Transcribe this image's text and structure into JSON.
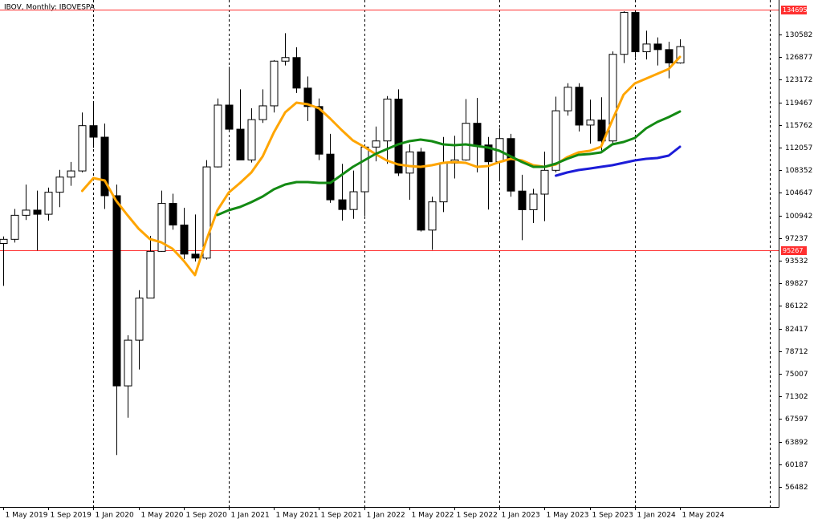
{
  "chart_data": {
    "type": "candlestick",
    "title": "IBOV, Monthly:  IBOVESPA",
    "categories": [
      "1 May 2019",
      null,
      null,
      null,
      "1 Sep 2019",
      null,
      null,
      null,
      "1 Jan 2020",
      null,
      null,
      null,
      "1 May 2020",
      null,
      null,
      null,
      "1 Sep 2020",
      null,
      null,
      null,
      "1 Jan 2021",
      null,
      null,
      null,
      "1 May 2021",
      null,
      null,
      null,
      "1 Sep 2021",
      null,
      null,
      null,
      "1 Jan 2022",
      null,
      null,
      null,
      "1 May 2022",
      null,
      null,
      null,
      "1 Sep 2022",
      null,
      null,
      null,
      "1 Jan 2023",
      null,
      null,
      null,
      "1 May 2023",
      null,
      null,
      null,
      "1 Sep 2023",
      null,
      null,
      null,
      "1 Jan 2024",
      null,
      null,
      null,
      "1 May 2024"
    ],
    "open": [
      96353,
      97030,
      100967,
      101812,
      101135,
      104745,
      107220,
      108233,
      115645,
      113761,
      104172,
      73020,
      80506,
      87403,
      95056,
      102912,
      99369,
      94603,
      93952,
      108893,
      119017,
      115068,
      110035,
      116634,
      118894,
      126216,
      126802,
      121801,
      118781,
      110979,
      103501,
      101915,
      104822,
      112144,
      113142,
      119999,
      107876,
      111351,
      98542,
      103165,
      109523,
      110037,
      116037,
      112486,
      109735,
      113532,
      104932,
      101882,
      104432,
      108335,
      118087,
      121943,
      115742,
      116565,
      113144,
      127331,
      134185,
      127752,
      129020,
      128106,
      125924
    ],
    "high": [
      97500,
      102000,
      106000,
      105000,
      105500,
      108400,
      109700,
      117800,
      119600,
      116000,
      106000,
      81300,
      88700,
      97600,
      105000,
      104500,
      102200,
      101100,
      110000,
      120100,
      125300,
      121600,
      118500,
      121600,
      126400,
      130800,
      128500,
      123700,
      120100,
      114300,
      109400,
      108300,
      112500,
      115500,
      120500,
      121600,
      112600,
      112000,
      104000,
      113800,
      114000,
      120000,
      120200,
      113800,
      115200,
      114300,
      107600,
      105300,
      111400,
      120400,
      122600,
      122600,
      119900,
      120300,
      127800,
      134400,
      134400,
      131200,
      130100,
      129400,
      129800
    ],
    "low": [
      89400,
      96500,
      100200,
      95200,
      100100,
      102300,
      105800,
      108000,
      112000,
      102000,
      61690,
      67800,
      75700,
      87400,
      95000,
      98600,
      93800,
      93400,
      93700,
      108800,
      114700,
      110100,
      109600,
      116100,
      117800,
      125500,
      121000,
      116400,
      110000,
      103000,
      100100,
      100400,
      100800,
      109800,
      109400,
      107400,
      103500,
      98300,
      95300,
      101500,
      107000,
      109900,
      108000,
      101900,
      106500,
      104000,
      96900,
      99700,
      100000,
      108000,
      117300,
      114700,
      112700,
      111600,
      112500,
      125900,
      126800,
      126500,
      125500,
      123400,
      125800
    ],
    "close": [
      97030,
      100967,
      101812,
      101135,
      104745,
      107220,
      108233,
      115645,
      113761,
      104172,
      73020,
      80506,
      87403,
      95056,
      102912,
      99369,
      94603,
      93952,
      108893,
      119017,
      115068,
      110035,
      116634,
      118894,
      126216,
      126802,
      121801,
      118781,
      110979,
      103501,
      101915,
      104822,
      112144,
      113142,
      119999,
      107876,
      111351,
      98542,
      103165,
      109523,
      110037,
      116037,
      112486,
      109735,
      113532,
      104932,
      101882,
      104432,
      108335,
      118087,
      121943,
      115742,
      116565,
      113144,
      127331,
      134185,
      127752,
      129020,
      128106,
      125924,
      128600
    ],
    "lines": [
      {
        "color": "#ffa500",
        "values": [
          null,
          null,
          null,
          null,
          null,
          null,
          null,
          104960,
          107060,
          106670,
          103380,
          101020,
          98780,
          97070,
          96550,
          95500,
          93530,
          91160,
          96810,
          101800,
          104690,
          106270,
          107980,
          110610,
          114550,
          117840,
          119410,
          119150,
          118490,
          116780,
          114940,
          113230,
          112180,
          111000,
          109950,
          109300,
          109030,
          108900,
          109160,
          109560,
          109690,
          109560,
          108900,
          109030,
          109690,
          110220,
          109950,
          109160,
          108900,
          109300,
          110480,
          111270,
          111530,
          112180,
          116520,
          120730,
          122570,
          123360,
          124140,
          124930,
          126900
        ]
      },
      {
        "color": "#138a13",
        "values": [
          null,
          null,
          null,
          null,
          null,
          null,
          null,
          null,
          null,
          null,
          null,
          null,
          null,
          null,
          null,
          null,
          null,
          null,
          null,
          101020,
          101800,
          102330,
          103120,
          104040,
          105220,
          106010,
          106400,
          106400,
          106270,
          106270,
          107580,
          108900,
          109950,
          111000,
          111790,
          112580,
          113110,
          113370,
          113110,
          112580,
          112450,
          112580,
          112320,
          112050,
          111530,
          110610,
          109690,
          108900,
          108900,
          109430,
          110220,
          110870,
          111000,
          111270,
          112580,
          112970,
          113630,
          115210,
          116260,
          117050,
          117970
        ]
      },
      {
        "color": "#1c1cd8",
        "values": [
          null,
          null,
          null,
          null,
          null,
          null,
          null,
          null,
          null,
          null,
          null,
          null,
          null,
          null,
          null,
          null,
          null,
          null,
          null,
          null,
          null,
          null,
          null,
          null,
          null,
          null,
          null,
          null,
          null,
          null,
          null,
          null,
          null,
          null,
          null,
          null,
          null,
          null,
          null,
          null,
          null,
          null,
          null,
          null,
          null,
          null,
          null,
          null,
          null,
          107450,
          107980,
          108370,
          108630,
          108900,
          109160,
          109560,
          109950,
          110220,
          110350,
          110740,
          112180
        ]
      }
    ],
    "up_color": "#ffffff",
    "down_color": "#000000",
    "ylim": [
      53187,
      136232
    ],
    "yticks": [
      130582,
      126877,
      123172,
      119467,
      115762,
      112057,
      108352,
      104647,
      100942,
      97237,
      93532,
      89827,
      86122,
      82417,
      78712,
      75007,
      71302,
      67597,
      63892,
      60187,
      56482
    ],
    "hlines": [
      134695,
      95267
    ],
    "hline_color": "#ff3030",
    "period_separators": true
  }
}
